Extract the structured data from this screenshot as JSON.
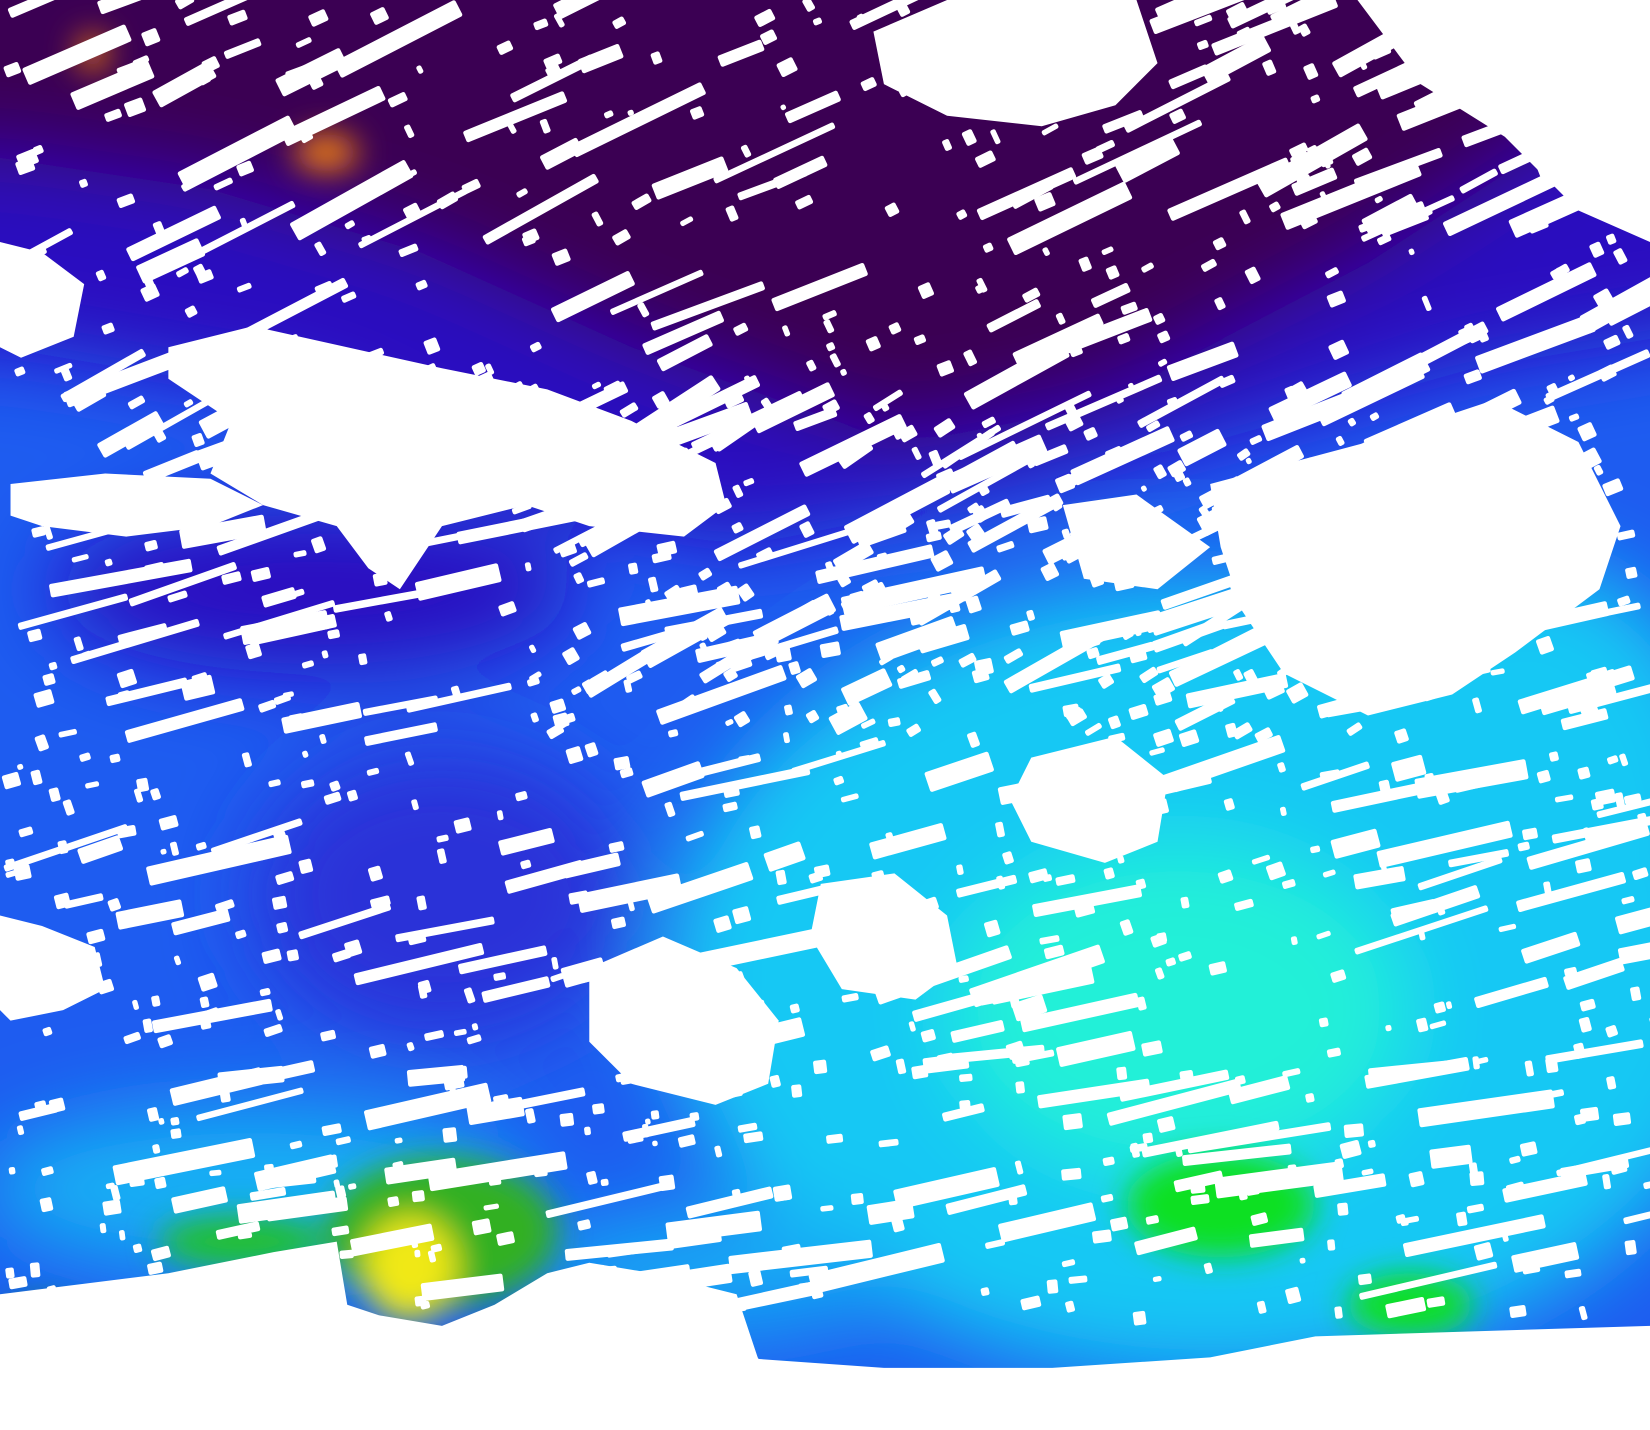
{
  "map": {
    "kind": "satellite ocean-color composite",
    "palette": {
      "no_data_cloud_land": "#ffffff",
      "very_low": "#3b0052",
      "low": "#2a10c0",
      "medium_low": "#1e5cf0",
      "medium": "#18c8f4",
      "medium_high": "#20f0d8",
      "high": "#10e020",
      "very_high": "#f0e818",
      "extreme": "#f08010"
    }
  }
}
